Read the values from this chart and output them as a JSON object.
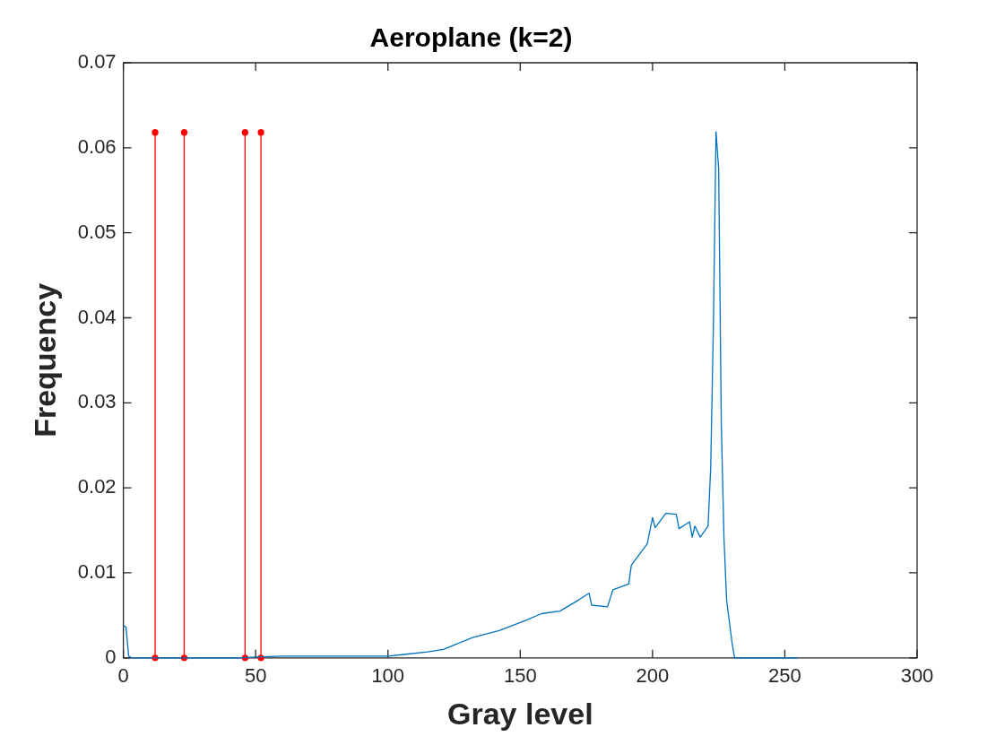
{
  "chart_data": {
    "type": "line",
    "title": "Aeroplane (k=2)",
    "xlabel": "Gray level",
    "ylabel": "Frequency",
    "xlim": [
      0,
      300
    ],
    "xticks": [
      0,
      50,
      100,
      150,
      200,
      250,
      300
    ],
    "ylim": [
      0,
      0.07
    ],
    "yticks": [
      0,
      0.01,
      0.02,
      0.03,
      0.04,
      0.05,
      0.06,
      0.07
    ],
    "grid": false,
    "legend": false,
    "line_style": "solid",
    "series": [
      {
        "type": "line",
        "color": "#0072bd",
        "marker": "none",
        "x": [
          0,
          1,
          2,
          3,
          20,
          44,
          50,
          60,
          80,
          100,
          106,
          115,
          121,
          132,
          142,
          152,
          158,
          165,
          172,
          176,
          177,
          183,
          185,
          191,
          192,
          198,
          200,
          201,
          205,
          209,
          210,
          214,
          215,
          216,
          218,
          221,
          222,
          223,
          224,
          225,
          226,
          227,
          228,
          230,
          231,
          240,
          255
        ],
        "values": [
          0.0038,
          0.0036,
          0.0002,
          0,
          0,
          0,
          0.0001,
          0.0002,
          0.0002,
          0.0002,
          0.0004,
          0.0007,
          0.001,
          0.0024,
          0.0032,
          0.0044,
          0.0052,
          0.0055,
          0.0068,
          0.0076,
          0.0062,
          0.006,
          0.008,
          0.0087,
          0.0109,
          0.0134,
          0.0165,
          0.0153,
          0.017,
          0.0169,
          0.0152,
          0.016,
          0.0142,
          0.0155,
          0.0142,
          0.0155,
          0.0225,
          0.039,
          0.0619,
          0.0575,
          0.0274,
          0.0142,
          0.0068,
          0.0019,
          0,
          0,
          0
        ]
      },
      {
        "type": "line",
        "color": "#ff0000",
        "marker": "circle",
        "x": [
          12,
          12
        ],
        "values": [
          0,
          0.0618
        ]
      },
      {
        "type": "line",
        "color": "#ff0000",
        "marker": "circle",
        "x": [
          23,
          23
        ],
        "values": [
          0,
          0.0618
        ]
      },
      {
        "type": "line",
        "color": "#ff0000",
        "marker": "circle",
        "x": [
          46,
          46
        ],
        "values": [
          0,
          0.0618
        ]
      },
      {
        "type": "line",
        "color": "#ff0000",
        "marker": "circle",
        "x": [
          52,
          52
        ],
        "values": [
          0,
          0.0618
        ]
      }
    ]
  }
}
